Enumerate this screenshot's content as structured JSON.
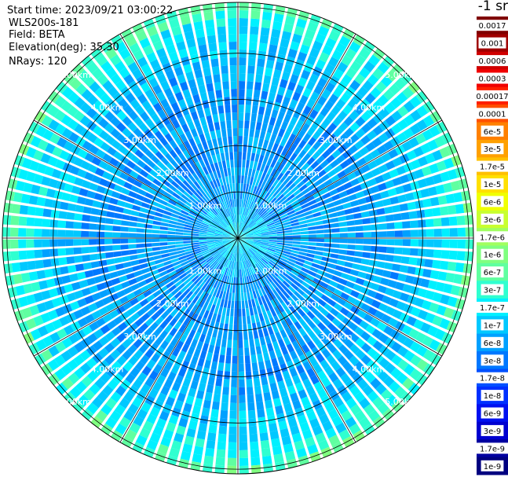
{
  "header": {
    "start_time": "Start time: 2023/09/21 03:00:22",
    "instrument": "WLS200s-181",
    "field": "Field: BETA",
    "elevation": "Elevation(deg): 35.30",
    "nrays": "NRays: 120",
    "units": "-1 sr"
  },
  "chart_data": {
    "type": "heatmap",
    "projection": "polar (PPI scan)",
    "field": "BETA",
    "n_rays": 120,
    "elevation_deg": 35.3,
    "range_rings_km": [
      "1.00km",
      "2.00km",
      "3.00km",
      "4.00km",
      "5.00km"
    ],
    "max_range_km": 5.1,
    "colorbar": {
      "labels": [
        "0.0017",
        "0.001",
        "0.0006",
        "0.0003",
        "0.00017",
        "0.0001",
        "6e-5",
        "3e-5",
        "1.7e-5",
        "1e-5",
        "6e-6",
        "3e-6",
        "1.7e-6",
        "1e-6",
        "6e-7",
        "3e-7",
        "1.7e-7",
        "1e-7",
        "6e-8",
        "3e-8",
        "1.7e-8",
        "1e-8",
        "6e-9",
        "3e-9",
        "1.7e-9",
        "1e-9"
      ],
      "colors": [
        "#800000",
        "#a00000",
        "#d00000",
        "#f00000",
        "#ff2000",
        "#ff5000",
        "#ff8000",
        "#ffa000",
        "#ffc000",
        "#ffe000",
        "#f0ff00",
        "#c8ff30",
        "#a0ff60",
        "#80ff80",
        "#60ffa0",
        "#30ffd0",
        "#00f0ff",
        "#00c8ff",
        "#00a0ff",
        "#0078ff",
        "#0050ff",
        "#0030ff",
        "#0010f0",
        "#0000d0",
        "#0000a0",
        "#000080"
      ]
    },
    "radial_profile": [
      {
        "range_km": 0.0,
        "class": 16
      },
      {
        "range_km": 0.5,
        "class": 17
      },
      {
        "range_km": 1.0,
        "class": 18
      },
      {
        "range_km": 2.0,
        "class": 18
      },
      {
        "range_km": 3.0,
        "class": 18
      },
      {
        "range_km": 4.0,
        "class": 17
      },
      {
        "range_km": 4.6,
        "class": 16
      },
      {
        "range_km": 5.1,
        "class": 14
      }
    ]
  }
}
